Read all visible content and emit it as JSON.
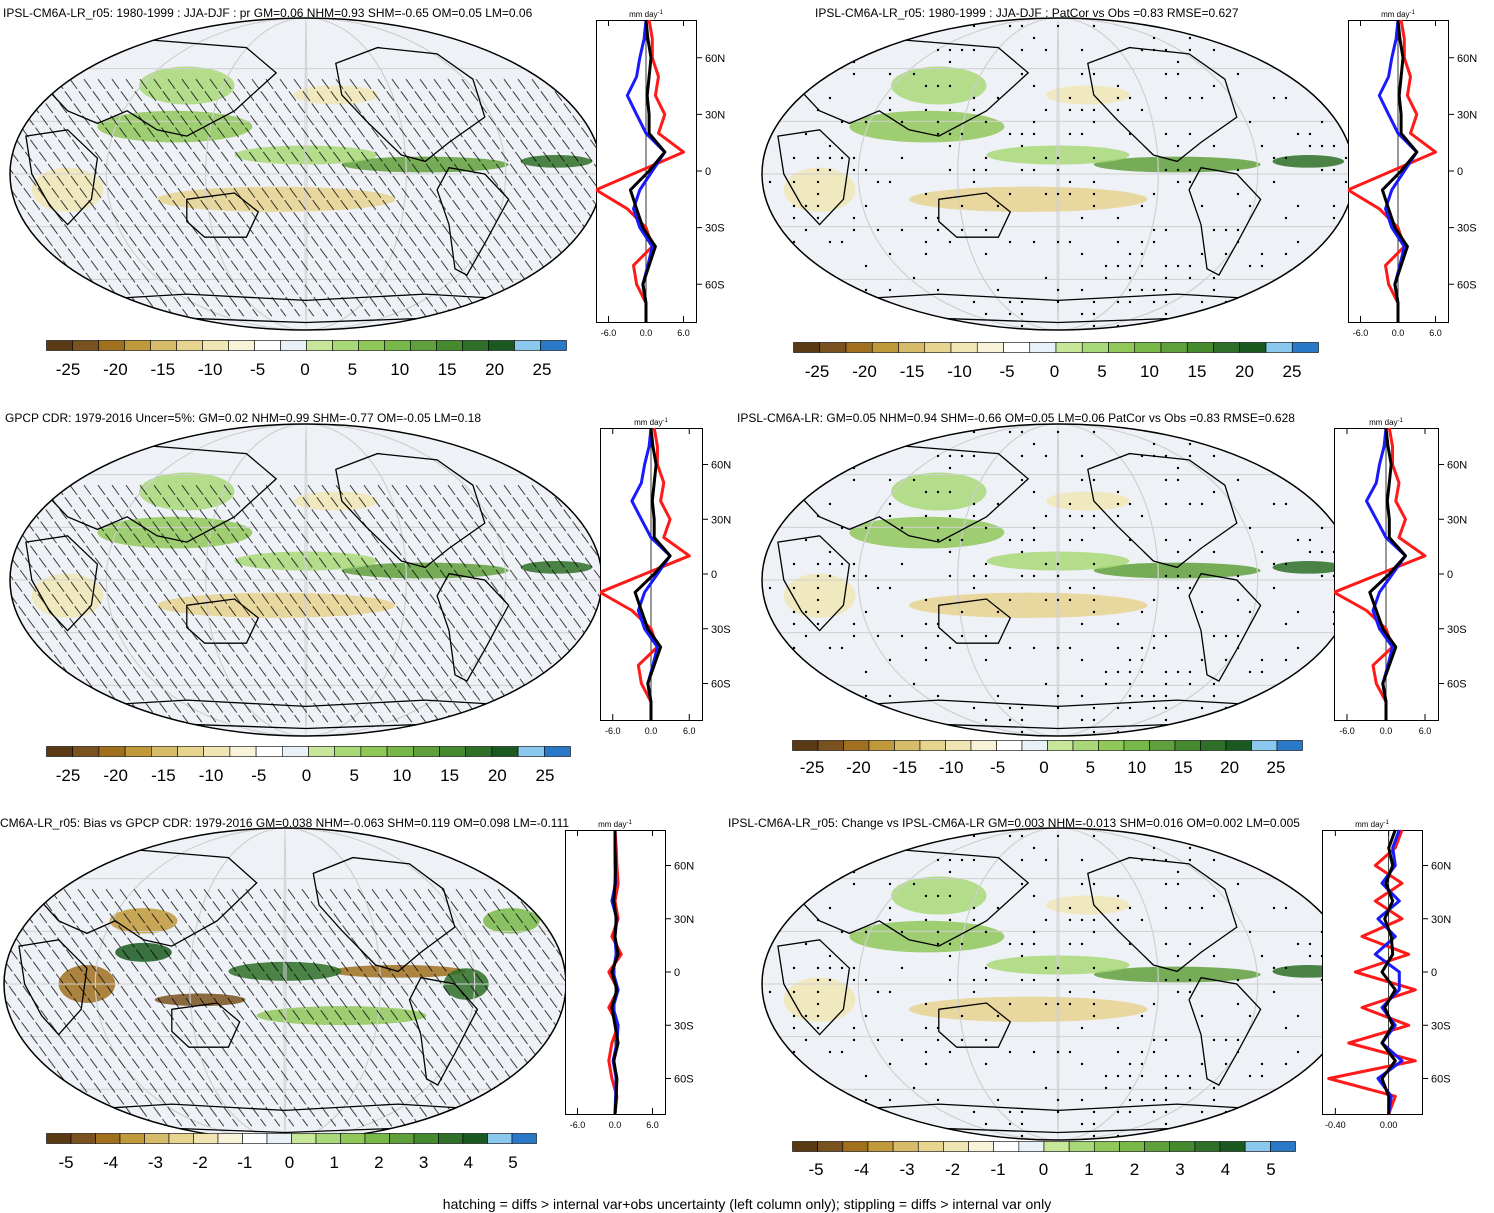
{
  "colorbar_colors": [
    "#5a3a14",
    "#7a5220",
    "#a0701e",
    "#c09a3a",
    "#d6bc6a",
    "#e6d48f",
    "#f0e6b4",
    "#f8f2d8",
    "#ffffff",
    "#e8f0f8",
    "#c8e69a",
    "#a8d878",
    "#90c85a",
    "#78b848",
    "#60a03c",
    "#468a30",
    "#2e7028",
    "#1a5a20",
    "#8ac8ee",
    "#2a78c8"
  ],
  "colors": {
    "model": "#000000",
    "obs": "#1a1aff",
    "bias": "#ff1a1a",
    "land": "#eef1f6",
    "grid": "#cfcfcf"
  },
  "panels": [
    {
      "id": "model-jja-djf",
      "title": "IPSL-CM6A-LR_r05: 1980-1999 : JJA-DJF : pr GM=0.06 NHM=0.93 SHM=-0.65 OM=0.05 LM=0.06",
      "pattern": "hatch",
      "cbar_labels": [
        "-25",
        "-20",
        "-15",
        "-10",
        "-5",
        "0",
        "5",
        "10",
        "15",
        "20",
        "25"
      ],
      "profile": {
        "units": "mm day",
        "units_exp": "-1",
        "xticks": [
          "-6.0",
          "0.0",
          "6.0"
        ],
        "yticks": [
          "60N",
          "30N",
          "0",
          "30S",
          "60S"
        ]
      }
    },
    {
      "id": "model-patcor",
      "title": "IPSL-CM6A-LR_r05: 1980-1999 : JJA-DJF : PatCor vs Obs =0.83 RMSE=0.627",
      "pattern": "stipple",
      "cbar_labels": [
        "-25",
        "-20",
        "-15",
        "-10",
        "-5",
        "0",
        "5",
        "10",
        "15",
        "20",
        "25"
      ],
      "profile": {
        "units": "mm day",
        "units_exp": "-1",
        "xticks": [
          "-6.0",
          "0.0",
          "6.0"
        ],
        "yticks": [
          "60N",
          "30N",
          "0",
          "30S",
          "60S"
        ]
      }
    },
    {
      "id": "gpcp",
      "title": "GPCP CDR: 1979-2016 Uncer=5%: GM=0.02 NHM=0.99 SHM=-0.77 OM=-0.05 LM=0.18",
      "pattern": "hatch",
      "cbar_labels": [
        "-25",
        "-20",
        "-15",
        "-10",
        "-5",
        "0",
        "5",
        "10",
        "15",
        "20",
        "25"
      ],
      "profile": {
        "units": "mm day",
        "units_exp": "-1",
        "xticks": [
          "-6.0",
          "0.0",
          "6.0"
        ],
        "yticks": [
          "60N",
          "30N",
          "0",
          "30S",
          "60S"
        ]
      }
    },
    {
      "id": "ensemble",
      "title": "IPSL-CM6A-LR: GM=0.05 NHM=0.94 SHM=-0.66 OM=0.05 LM=0.06 PatCor vs Obs =0.83 RMSE=0.628",
      "pattern": "stipple",
      "cbar_labels": [
        "-25",
        "-20",
        "-15",
        "-10",
        "-5",
        "0",
        "5",
        "10",
        "15",
        "20",
        "25"
      ],
      "profile": {
        "units": "mm day",
        "units_exp": "-1",
        "xticks": [
          "-6.0",
          "0.0",
          "6.0"
        ],
        "yticks": [
          "60N",
          "30N",
          "0",
          "30S",
          "60S"
        ]
      }
    },
    {
      "id": "bias",
      "title": "CM6A-LR_r05: Bias vs GPCP CDR: 1979-2016 GM=0.038 NHM=-0.063 SHM=0.119 OM=0.098 LM=-0.111",
      "pattern": "hatch",
      "cbar_labels": [
        "-5",
        "-4",
        "-3",
        "-2",
        "-1",
        "0",
        "1",
        "2",
        "3",
        "4",
        "5"
      ],
      "profile": {
        "units": "mm day",
        "units_exp": "-1",
        "xticks": [
          "-6.0",
          "0.0",
          "6.0"
        ],
        "yticks": [
          "60N",
          "30N",
          "0",
          "30S",
          "60S"
        ]
      }
    },
    {
      "id": "change",
      "title": "IPSL-CM6A-LR_r05: Change vs IPSL-CM6A-LR GM=0.003 NHM=-0.013 SHM=0.016 OM=0.002 LM=0.005",
      "pattern": "stipple",
      "cbar_labels": [
        "-5",
        "-4",
        "-3",
        "-2",
        "-1",
        "0",
        "1",
        "2",
        "3",
        "4",
        "5"
      ],
      "profile": {
        "units": "mm day",
        "units_exp": "-1",
        "xticks": [
          "-0.40",
          "0.00"
        ],
        "yticks": [
          "60N",
          "30N",
          "0",
          "30S",
          "60S"
        ]
      }
    }
  ],
  "footer": "hatching = diffs > internal var+obs uncertainty (left column only); stippling = diffs > internal var only",
  "chart_data": [
    {
      "type": "line",
      "title": "IPSL-CM6A-LR_r05: 1980-1999 : JJA-DJF : pr GM=0.06 NHM=0.93 SHM=-0.65 OM=0.05 LM=0.06",
      "xlabel": "mm day-1",
      "xlim": [
        -8,
        8
      ],
      "ylim": [
        -80,
        80
      ],
      "series": [
        {
          "color": "#000000",
          "lat": [
            -80,
            -70,
            -60,
            -50,
            -40,
            -30,
            -20,
            -10,
            0,
            10,
            20,
            30,
            40,
            50,
            60,
            70,
            80
          ],
          "values": [
            0,
            0,
            -0.5,
            0.5,
            1.5,
            -0.5,
            -1.5,
            -2.5,
            0.5,
            3,
            0.5,
            0.5,
            0.2,
            0.5,
            0.8,
            0.3,
            0
          ]
        },
        {
          "color": "#1a1aff",
          "lat": [
            -80,
            -70,
            -60,
            -50,
            -40,
            -30,
            -20,
            -10,
            0,
            10,
            20,
            30,
            40,
            50,
            60,
            70,
            80
          ],
          "values": [
            0,
            0,
            -0.5,
            0.3,
            1,
            -1,
            -2,
            -1,
            1,
            3,
            0,
            -1.5,
            -3,
            -1.5,
            -1,
            -0.3,
            0
          ]
        },
        {
          "color": "#ff1a1a",
          "lat": [
            -80,
            -70,
            -60,
            -50,
            -40,
            -30,
            -20,
            -10,
            0,
            10,
            20,
            30,
            40,
            50,
            60,
            70,
            80
          ],
          "values": [
            0,
            0,
            -1.5,
            -2,
            1,
            0,
            -3,
            -8,
            -1,
            6,
            2,
            3,
            1.5,
            2,
            1,
            1,
            0.5
          ]
        }
      ]
    },
    {
      "type": "line",
      "title": "IPSL-CM6A-LR_r05: 1980-1999 : JJA-DJF : PatCor vs Obs =0.83 RMSE=0.627",
      "xlabel": "mm day-1",
      "xlim": [
        -8,
        8
      ],
      "ylim": [
        -80,
        80
      ],
      "series": [
        {
          "color": "#000000",
          "lat": [
            -80,
            -70,
            -60,
            -50,
            -40,
            -30,
            -20,
            -10,
            0,
            10,
            20,
            30,
            40,
            50,
            60,
            70,
            80
          ],
          "values": [
            0,
            0,
            -0.5,
            0.5,
            1.5,
            -0.5,
            -1.5,
            -2.5,
            0.5,
            3,
            0.5,
            0.5,
            0.2,
            0.5,
            0.8,
            0.3,
            0
          ]
        },
        {
          "color": "#1a1aff",
          "lat": [
            -80,
            -70,
            -60,
            -50,
            -40,
            -30,
            -20,
            -10,
            0,
            10,
            20,
            30,
            40,
            50,
            60,
            70,
            80
          ],
          "values": [
            0,
            0,
            -0.5,
            0.3,
            1,
            -1,
            -2,
            -1,
            1,
            3,
            0,
            -1.5,
            -3,
            -1.5,
            -1,
            -0.3,
            0
          ]
        },
        {
          "color": "#ff1a1a",
          "lat": [
            -80,
            -70,
            -60,
            -50,
            -40,
            -30,
            -20,
            -10,
            0,
            10,
            20,
            30,
            40,
            50,
            60,
            70,
            80
          ],
          "values": [
            0,
            0,
            -1.5,
            -2,
            1,
            0,
            -3,
            -8,
            -1,
            6,
            2,
            3,
            1.5,
            2,
            1,
            1,
            0.5
          ]
        }
      ]
    },
    {
      "type": "line",
      "title": "GPCP CDR: 1979-2016 Uncer=5%: GM=0.02 NHM=0.99 SHM=-0.77 OM=-0.05 LM=0.18",
      "xlabel": "mm day-1",
      "xlim": [
        -8,
        8
      ],
      "ylim": [
        -80,
        80
      ],
      "series": [
        {
          "color": "#000000",
          "lat": [
            -80,
            -70,
            -60,
            -50,
            -40,
            -30,
            -20,
            -10,
            0,
            10,
            20,
            30,
            40,
            50,
            60,
            70,
            80
          ],
          "values": [
            0,
            0,
            -0.5,
            0.5,
            1.5,
            -0.5,
            -1.5,
            -2.5,
            0.5,
            3,
            0.5,
            0.5,
            0.2,
            0.5,
            0.8,
            0.3,
            0
          ]
        },
        {
          "color": "#1a1aff",
          "lat": [
            -80,
            -70,
            -60,
            -50,
            -40,
            -30,
            -20,
            -10,
            0,
            10,
            20,
            30,
            40,
            50,
            60,
            70,
            80
          ],
          "values": [
            0,
            0,
            -0.5,
            0.3,
            1,
            -1,
            -2,
            -1,
            1,
            3,
            0,
            -1.5,
            -3,
            -1.5,
            -1,
            -0.3,
            0
          ]
        },
        {
          "color": "#ff1a1a",
          "lat": [
            -80,
            -70,
            -60,
            -50,
            -40,
            -30,
            -20,
            -10,
            0,
            10,
            20,
            30,
            40,
            50,
            60,
            70,
            80
          ],
          "values": [
            0,
            0,
            -1.5,
            -2,
            1,
            0,
            -3,
            -8,
            -1,
            6,
            2,
            3,
            1.5,
            2,
            1,
            1,
            0.5
          ]
        }
      ]
    },
    {
      "type": "line",
      "title": "IPSL-CM6A-LR: GM=0.05 NHM=0.94 SHM=-0.66 OM=0.05 LM=0.06 PatCor vs Obs =0.83 RMSE=0.628",
      "xlabel": "mm day-1",
      "xlim": [
        -8,
        8
      ],
      "ylim": [
        -80,
        80
      ],
      "series": [
        {
          "color": "#000000",
          "lat": [
            -80,
            -70,
            -60,
            -50,
            -40,
            -30,
            -20,
            -10,
            0,
            10,
            20,
            30,
            40,
            50,
            60,
            70,
            80
          ],
          "values": [
            0,
            0,
            -0.5,
            0.5,
            1.5,
            -0.5,
            -1.5,
            -2.5,
            0.5,
            3,
            0.5,
            0.5,
            0.2,
            0.5,
            0.8,
            0.3,
            0
          ]
        },
        {
          "color": "#1a1aff",
          "lat": [
            -80,
            -70,
            -60,
            -50,
            -40,
            -30,
            -20,
            -10,
            0,
            10,
            20,
            30,
            40,
            50,
            60,
            70,
            80
          ],
          "values": [
            0,
            0,
            -0.5,
            0.3,
            1,
            -1,
            -2,
            -1,
            1,
            3,
            0,
            -1.5,
            -3,
            -1.5,
            -1,
            -0.3,
            0
          ]
        },
        {
          "color": "#ff1a1a",
          "lat": [
            -80,
            -70,
            -60,
            -50,
            -40,
            -30,
            -20,
            -10,
            0,
            10,
            20,
            30,
            40,
            50,
            60,
            70,
            80
          ],
          "values": [
            0,
            0,
            -1.5,
            -2,
            1,
            0,
            -3,
            -8,
            -1,
            6,
            2,
            3,
            1.5,
            2,
            1,
            1,
            0.5
          ]
        }
      ]
    },
    {
      "type": "line",
      "title": "CM6A-LR_r05: Bias vs GPCP CDR: 1979-2016 GM=0.038 NHM=-0.063 SHM=0.119 OM=0.098 LM=-0.111",
      "xlabel": "mm day-1",
      "xlim": [
        -8,
        8
      ],
      "ylim": [
        -80,
        80
      ],
      "series": [
        {
          "color": "#000000",
          "lat": [
            -80,
            -70,
            -60,
            -50,
            -40,
            -30,
            -20,
            -10,
            0,
            10,
            20,
            30,
            40,
            50,
            60,
            70,
            80
          ],
          "values": [
            0,
            0.2,
            0.3,
            -0.2,
            0.5,
            0,
            -0.5,
            0.3,
            -0.5,
            0.5,
            0,
            0.2,
            -0.2,
            0,
            0.1,
            0,
            0
          ]
        },
        {
          "color": "#1a1aff",
          "lat": [
            -80,
            -70,
            -60,
            -50,
            -40,
            -30,
            -20,
            -10,
            0,
            10,
            20,
            30,
            40,
            50,
            60,
            70,
            80
          ],
          "values": [
            0,
            0.1,
            0.2,
            -0.3,
            0.3,
            0.5,
            -0.3,
            0.5,
            -0.3,
            0.2,
            0,
            0.3,
            -0.5,
            0.1,
            0,
            0,
            0
          ]
        },
        {
          "color": "#ff1a1a",
          "lat": [
            -80,
            -70,
            -60,
            -50,
            -40,
            -30,
            -20,
            -10,
            0,
            10,
            20,
            30,
            40,
            50,
            60,
            70,
            80
          ],
          "values": [
            0,
            0.3,
            -0.5,
            -1,
            -0.5,
            0.5,
            -1,
            0.5,
            -1,
            1,
            -0.5,
            0.5,
            0,
            0.5,
            0.3,
            0.2,
            0
          ]
        }
      ]
    },
    {
      "type": "line",
      "title": "IPSL-CM6A-LR_r05: Change vs IPSL-CM6A-LR GM=0.003 NHM=-0.013 SHM=0.016 OM=0.002 LM=0.005",
      "xlabel": "mm day-1",
      "xlim": [
        -0.5,
        0.25
      ],
      "ylim": [
        -80,
        80
      ],
      "series": [
        {
          "color": "#000000",
          "lat": [
            -80,
            -70,
            -60,
            -50,
            -40,
            -30,
            -20,
            -10,
            0,
            10,
            20,
            30,
            40,
            50,
            60,
            70,
            80
          ],
          "values": [
            0,
            0,
            -0.05,
            0.05,
            -0.05,
            0.03,
            -0.03,
            0.05,
            -0.05,
            0.03,
            0.02,
            -0.03,
            0.03,
            -0.02,
            0.03,
            0,
            0.05
          ]
        },
        {
          "color": "#1a1aff",
          "lat": [
            -80,
            -70,
            -60,
            -50,
            -40,
            -30,
            -20,
            -10,
            0,
            10,
            20,
            30,
            40,
            50,
            60,
            70,
            80
          ],
          "values": [
            0,
            0.02,
            -0.08,
            0.1,
            -0.05,
            0.05,
            -0.05,
            0.08,
            0.08,
            -0.1,
            0.05,
            -0.08,
            0.08,
            -0.05,
            0.05,
            0.03,
            0.08
          ]
        },
        {
          "color": "#ff1a1a",
          "lat": [
            -80,
            -70,
            -60,
            -50,
            -40,
            -30,
            -20,
            -10,
            0,
            10,
            20,
            30,
            40,
            50,
            60,
            70,
            80
          ],
          "values": [
            0,
            0.05,
            -0.45,
            0.2,
            -0.3,
            0.15,
            -0.2,
            0.2,
            -0.25,
            0.15,
            -0.2,
            0.1,
            -0.1,
            0.1,
            -0.1,
            0.05,
            0.1
          ]
        }
      ]
    }
  ]
}
